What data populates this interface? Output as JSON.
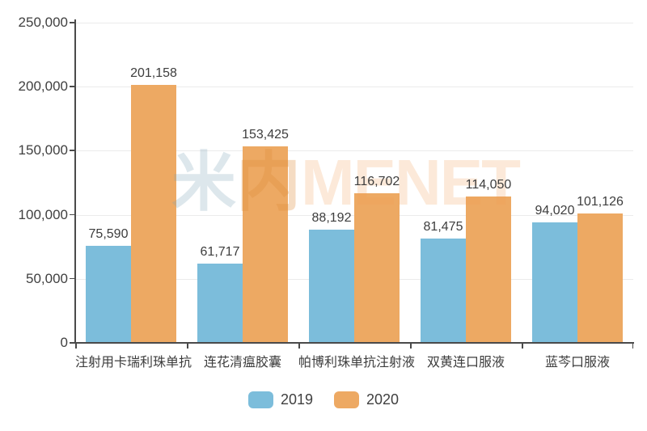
{
  "chart_data": {
    "type": "bar",
    "title": "",
    "categories": [
      "注射用卡瑞利珠单抗",
      "连花清瘟胶囊",
      "帕博利珠单抗注射液",
      "双黄连口服液",
      "蓝芩口服液"
    ],
    "series": [
      {
        "name": "2019",
        "color": "#7cbddb",
        "values": [
          75590,
          61717,
          88192,
          81475,
          94020
        ]
      },
      {
        "name": "2020",
        "color": "#eda963",
        "values": [
          201158,
          153425,
          116702,
          114050,
          101126
        ]
      }
    ],
    "data_labels": {
      "2019": [
        "75,590",
        "61,717",
        "88,192",
        "81,475",
        "94,020"
      ],
      "2020": [
        "201,158",
        "153,425",
        "116,702",
        "114,050",
        "101,126"
      ]
    },
    "xlabel": "",
    "ylabel": "",
    "ylim": [
      0,
      250000
    ],
    "y_step": 50000,
    "y_tick_labels": [
      "0",
      "50,000",
      "100,000",
      "150,000",
      "200,000",
      "250,000"
    ],
    "grid": true,
    "legend_position": "bottom"
  },
  "watermark": {
    "logo_char_1": "米",
    "logo_char_2": "内",
    "brand_text": "MENET"
  },
  "colors": {
    "axis": "#4a4a4a",
    "gridline": "#ebebeb",
    "label_text": "#3d3d3d",
    "series_2019": "#7cbddb",
    "series_2020": "#eda963"
  }
}
